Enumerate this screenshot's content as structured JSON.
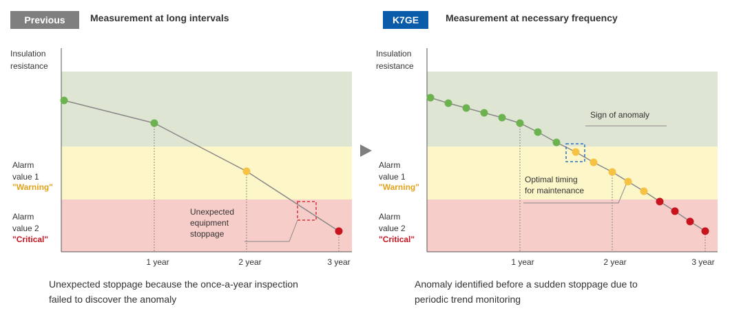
{
  "colors": {
    "previous_badge": "#7f7f7f",
    "k7ge_badge": "#0a5cab",
    "zone_normal": "#dfe5d3",
    "zone_warning": "#fdf6c9",
    "zone_critical": "#f7cdc9",
    "point_normal": "#6cb350",
    "point_warning": "#f6c243",
    "point_critical": "#c8141e",
    "line": "#888888",
    "warning_text": "#e3a21b",
    "critical_text": "#c8141e",
    "box_red": "#d9343c",
    "box_blue": "#2a6fc0",
    "arrow": "#7f7f7f"
  },
  "left": {
    "badge": "Previous",
    "subtitle": "Measurement at long intervals",
    "y_label": [
      "Insulation",
      "resistance"
    ],
    "alarm1": {
      "lines": [
        "Alarm",
        "value 1"
      ],
      "level": "\"Warning\""
    },
    "alarm2": {
      "lines": [
        "Alarm",
        "value 2"
      ],
      "level": "\"Critical\""
    },
    "annotation": [
      "Unexpected",
      "equipment",
      "stoppage"
    ],
    "x_ticks": [
      "1 year",
      "2 year",
      "3 year"
    ],
    "caption": [
      "Unexpected stoppage because the once-a-year inspection",
      "failed to discover the anomaly"
    ]
  },
  "right": {
    "badge": "K7GE",
    "subtitle": "Measurement at necessary frequency",
    "y_label": [
      "Insulation",
      "resistance"
    ],
    "alarm1": {
      "lines": [
        "Alarm",
        "value 1"
      ],
      "level": "\"Warning\""
    },
    "alarm2": {
      "lines": [
        "Alarm",
        "value 2"
      ],
      "level": "\"Critical\""
    },
    "annotation_anomaly": "Sign of anomaly",
    "annotation_timing": [
      "Optimal timing",
      "for maintenance"
    ],
    "x_ticks": [
      "1 year",
      "2 year",
      "3 year"
    ],
    "caption": [
      "Anomaly identified before a sudden stoppage due to",
      "periodic trend monitoring"
    ]
  }
}
